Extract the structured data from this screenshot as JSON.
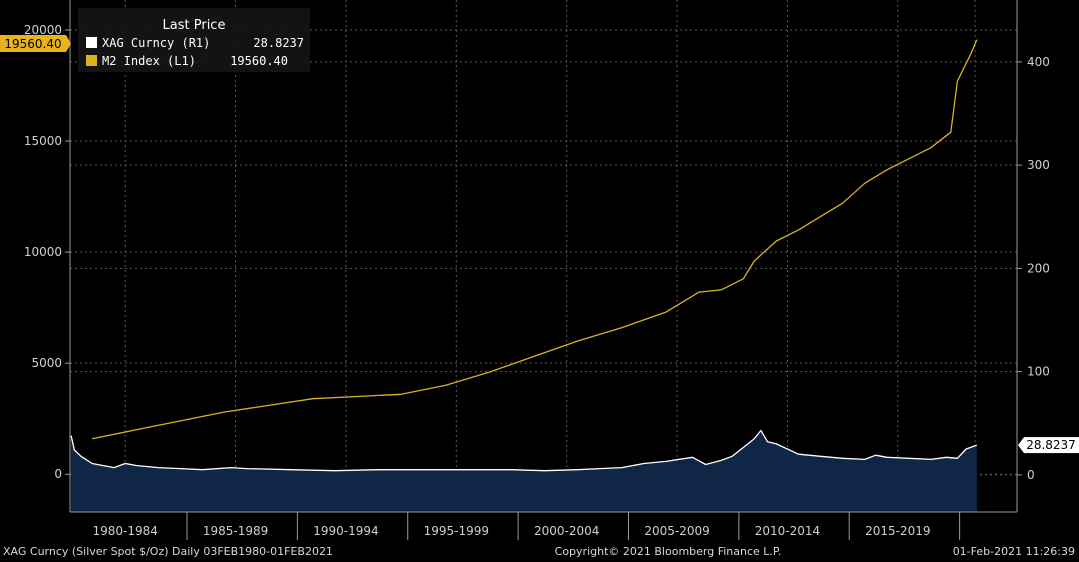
{
  "chart_data": {
    "type": "line",
    "legend": {
      "title": "Last Price",
      "entries": [
        {
          "label": "XAG Curncy  (R1)",
          "value": "28.8237",
          "color": "#ffffff"
        },
        {
          "label": "M2 Index  (L1)",
          "value": "19560.40",
          "color": "#d9b320"
        }
      ]
    },
    "left_axis": {
      "ticks": [
        0,
        5000,
        10000,
        15000,
        20000
      ],
      "tick_labels": [
        "0",
        "5000",
        "10000",
        "15000",
        "20000"
      ],
      "range": [
        -1700,
        21350
      ]
    },
    "right_axis": {
      "ticks": [
        0,
        100,
        200,
        300,
        400
      ],
      "tick_labels": [
        "0",
        "100",
        "200",
        "300",
        "400"
      ],
      "range": [
        -36,
        460
      ]
    },
    "x_range": [
      1980.0,
      2022.9
    ],
    "x_labels": [
      {
        "label": "1980-1984",
        "center": 1982.5
      },
      {
        "label": "1985-1989",
        "center": 1987.5
      },
      {
        "label": "1990-1994",
        "center": 1992.5
      },
      {
        "label": "1995-1999",
        "center": 1997.5
      },
      {
        "label": "2000-2004",
        "center": 2002.5
      },
      {
        "label": "2005-2009",
        "center": 2007.5
      },
      {
        "label": "2010-2014",
        "center": 2012.5
      },
      {
        "label": "2015-2019",
        "center": 2017.5
      }
    ],
    "x_separators": [
      1985,
      1990,
      1995,
      2000,
      2005,
      2010,
      2015,
      2020
    ],
    "series": [
      {
        "name": "M2 Index (L1)",
        "axis": "left",
        "color": "#d9b320",
        "x": [
          1981.0,
          1983.0,
          1985.0,
          1987.0,
          1989.0,
          1991.0,
          1993.0,
          1995.0,
          1997.0,
          1999.0,
          2001.0,
          2003.0,
          2005.0,
          2007.0,
          2008.5,
          2009.5,
          2010.5,
          2011.0,
          2012.0,
          2013.0,
          2014.0,
          2015.0,
          2016.0,
          2017.0,
          2018.0,
          2019.0,
          2019.9,
          2020.2,
          2020.5,
          2020.8,
          2021.08
        ],
        "y": [
          1600,
          2000,
          2400,
          2800,
          3100,
          3400,
          3500,
          3600,
          4000,
          4600,
          5300,
          6000,
          6600,
          7300,
          8200,
          8300,
          8800,
          9600,
          10500,
          11000,
          11600,
          12200,
          13100,
          13700,
          14200,
          14700,
          15400,
          17700,
          18300,
          18900,
          19560.4
        ]
      },
      {
        "name": "XAG Curncy (R1)",
        "axis": "right",
        "color": "#ffffff",
        "fill": "#0f2646",
        "x": [
          1980.05,
          1980.2,
          1980.5,
          1981.0,
          1982.0,
          1982.5,
          1983.0,
          1984.0,
          1985.0,
          1986.0,
          1987.3,
          1988.0,
          1990.0,
          1992.0,
          1994.0,
          1996.0,
          1998.0,
          2000.0,
          2001.5,
          2003.0,
          2004.0,
          2005.0,
          2006.0,
          2007.0,
          2008.2,
          2008.8,
          2009.5,
          2010.0,
          2011.0,
          2011.3,
          2011.6,
          2012.0,
          2013.0,
          2014.0,
          2015.0,
          2016.0,
          2016.5,
          2017.0,
          2018.0,
          2019.0,
          2019.7,
          2020.2,
          2020.6,
          2021.08
        ],
        "y": [
          38,
          24,
          18,
          11,
          7,
          11,
          9,
          7,
          6,
          5,
          7,
          6,
          5,
          4,
          5,
          5,
          5,
          5,
          4,
          5,
          6,
          7,
          11,
          13,
          17,
          10,
          14,
          18,
          35,
          43,
          32,
          30,
          20,
          18,
          16,
          15,
          19,
          17,
          16,
          15,
          17,
          16,
          25,
          28.8237
        ]
      }
    ],
    "left_tag": {
      "value": "19560.40",
      "bg": "#e8b41e",
      "fg": "#000000"
    },
    "right_tag": {
      "value": "28.8237",
      "bg": "#ffffff",
      "fg": "#000000"
    },
    "footer": {
      "left": "XAG Curncy (Silver Spot  $/Oz)  Daily 03FEB1980-01FEB2021",
      "center": "Copyright© 2021 Bloomberg Finance L.P.",
      "right": "01-Feb-2021 11:26:39"
    }
  }
}
